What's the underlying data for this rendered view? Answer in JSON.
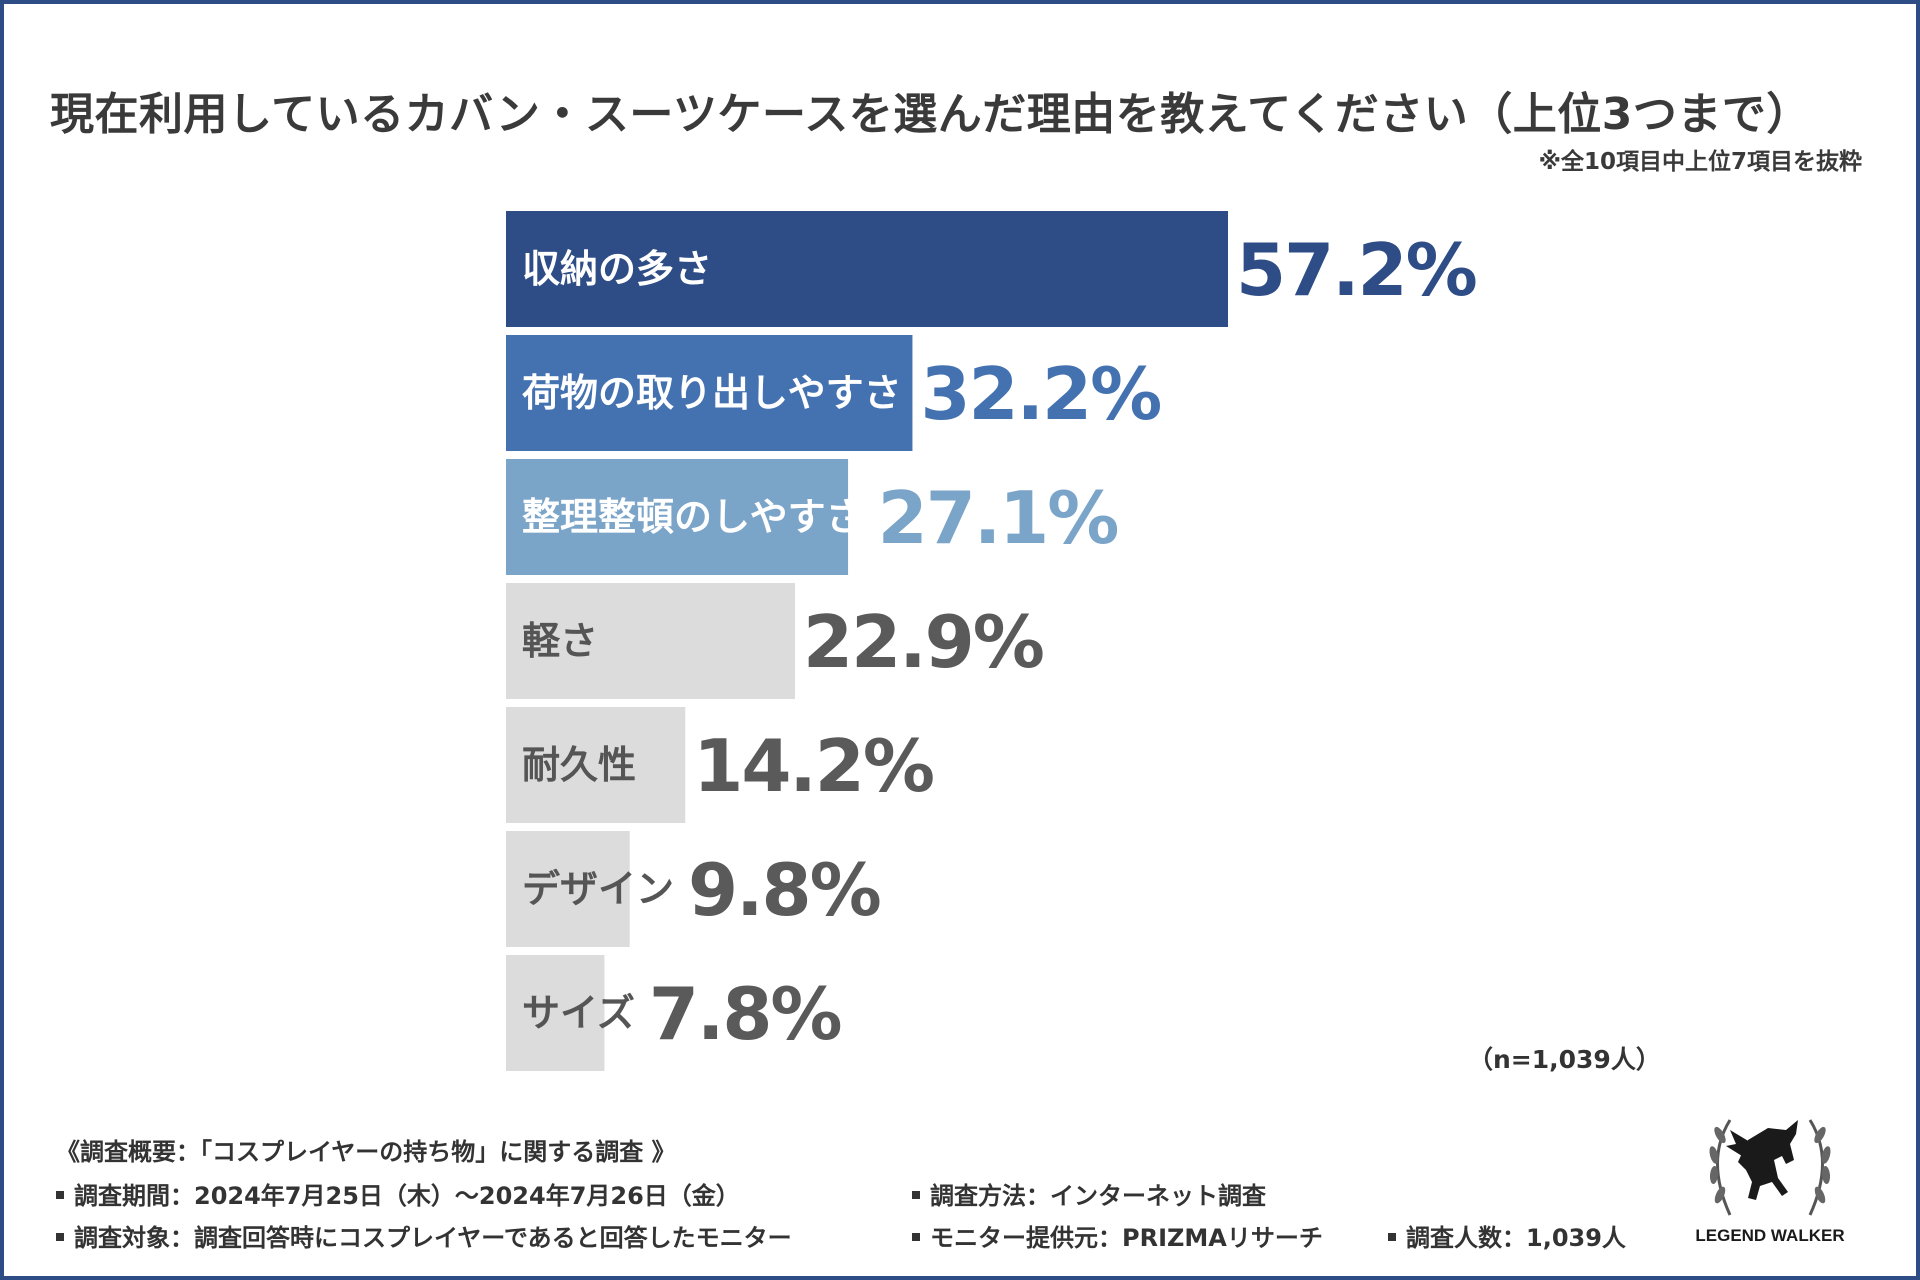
{
  "title": "現在利用しているカバン・スーツケースを選んだ理由を教えてください（上位3つまで）",
  "subnote": "※全10項目中上位7項目を抜粋",
  "sample_size": "（n=1,039人）",
  "chart_data": {
    "type": "bar",
    "orientation": "horizontal",
    "title": "現在利用しているカバン・スーツケースを選んだ理由を教えてください（上位3つまで）",
    "unit": "%",
    "xlim": [
      0,
      57.2
    ],
    "categories": [
      "収納の多さ",
      "荷物の取り出しやすさ",
      "整理整頓のしやすさ",
      "軽さ",
      "耐久性",
      "デザイン",
      "サイズ"
    ],
    "values": [
      57.2,
      32.2,
      27.1,
      22.9,
      14.2,
      9.8,
      7.8
    ],
    "value_labels": [
      "57.2%",
      "32.2%",
      "27.1%",
      "22.9%",
      "14.2%",
      "9.8%",
      "7.8%"
    ],
    "bar_colors": [
      "#2e4d86",
      "#4472b0",
      "#7ba4c9",
      "#dcdcdc",
      "#dcdcdc",
      "#dcdcdc",
      "#dcdcdc"
    ],
    "label_colors": [
      "#ffffff",
      "#ffffff",
      "#ffffff",
      "#555555",
      "#555555",
      "#555555",
      "#555555"
    ],
    "value_colors": [
      "#2e4d86",
      "#4472b0",
      "#7ba4c9",
      "#5a5a5a",
      "#5a5a5a",
      "#5a5a5a",
      "#5a5a5a"
    ]
  },
  "footer": {
    "survey_title": "《調査概要：「コスプレイヤーの持ち物」に関する調査 》",
    "period": "調査期間：2024年7月25日（木）～2024年7月26日（金）",
    "method": "調査方法：インターネット調査",
    "target": "調査対象：調査回答時にコスプレイヤーであると回答したモニター",
    "provider": "モニター提供元：PRIZMAリサーチ",
    "count": "調査人数：1,039人"
  },
  "logo": {
    "text": "LEGEND WALKER",
    "icon": "pegasus-laurel-icon"
  }
}
